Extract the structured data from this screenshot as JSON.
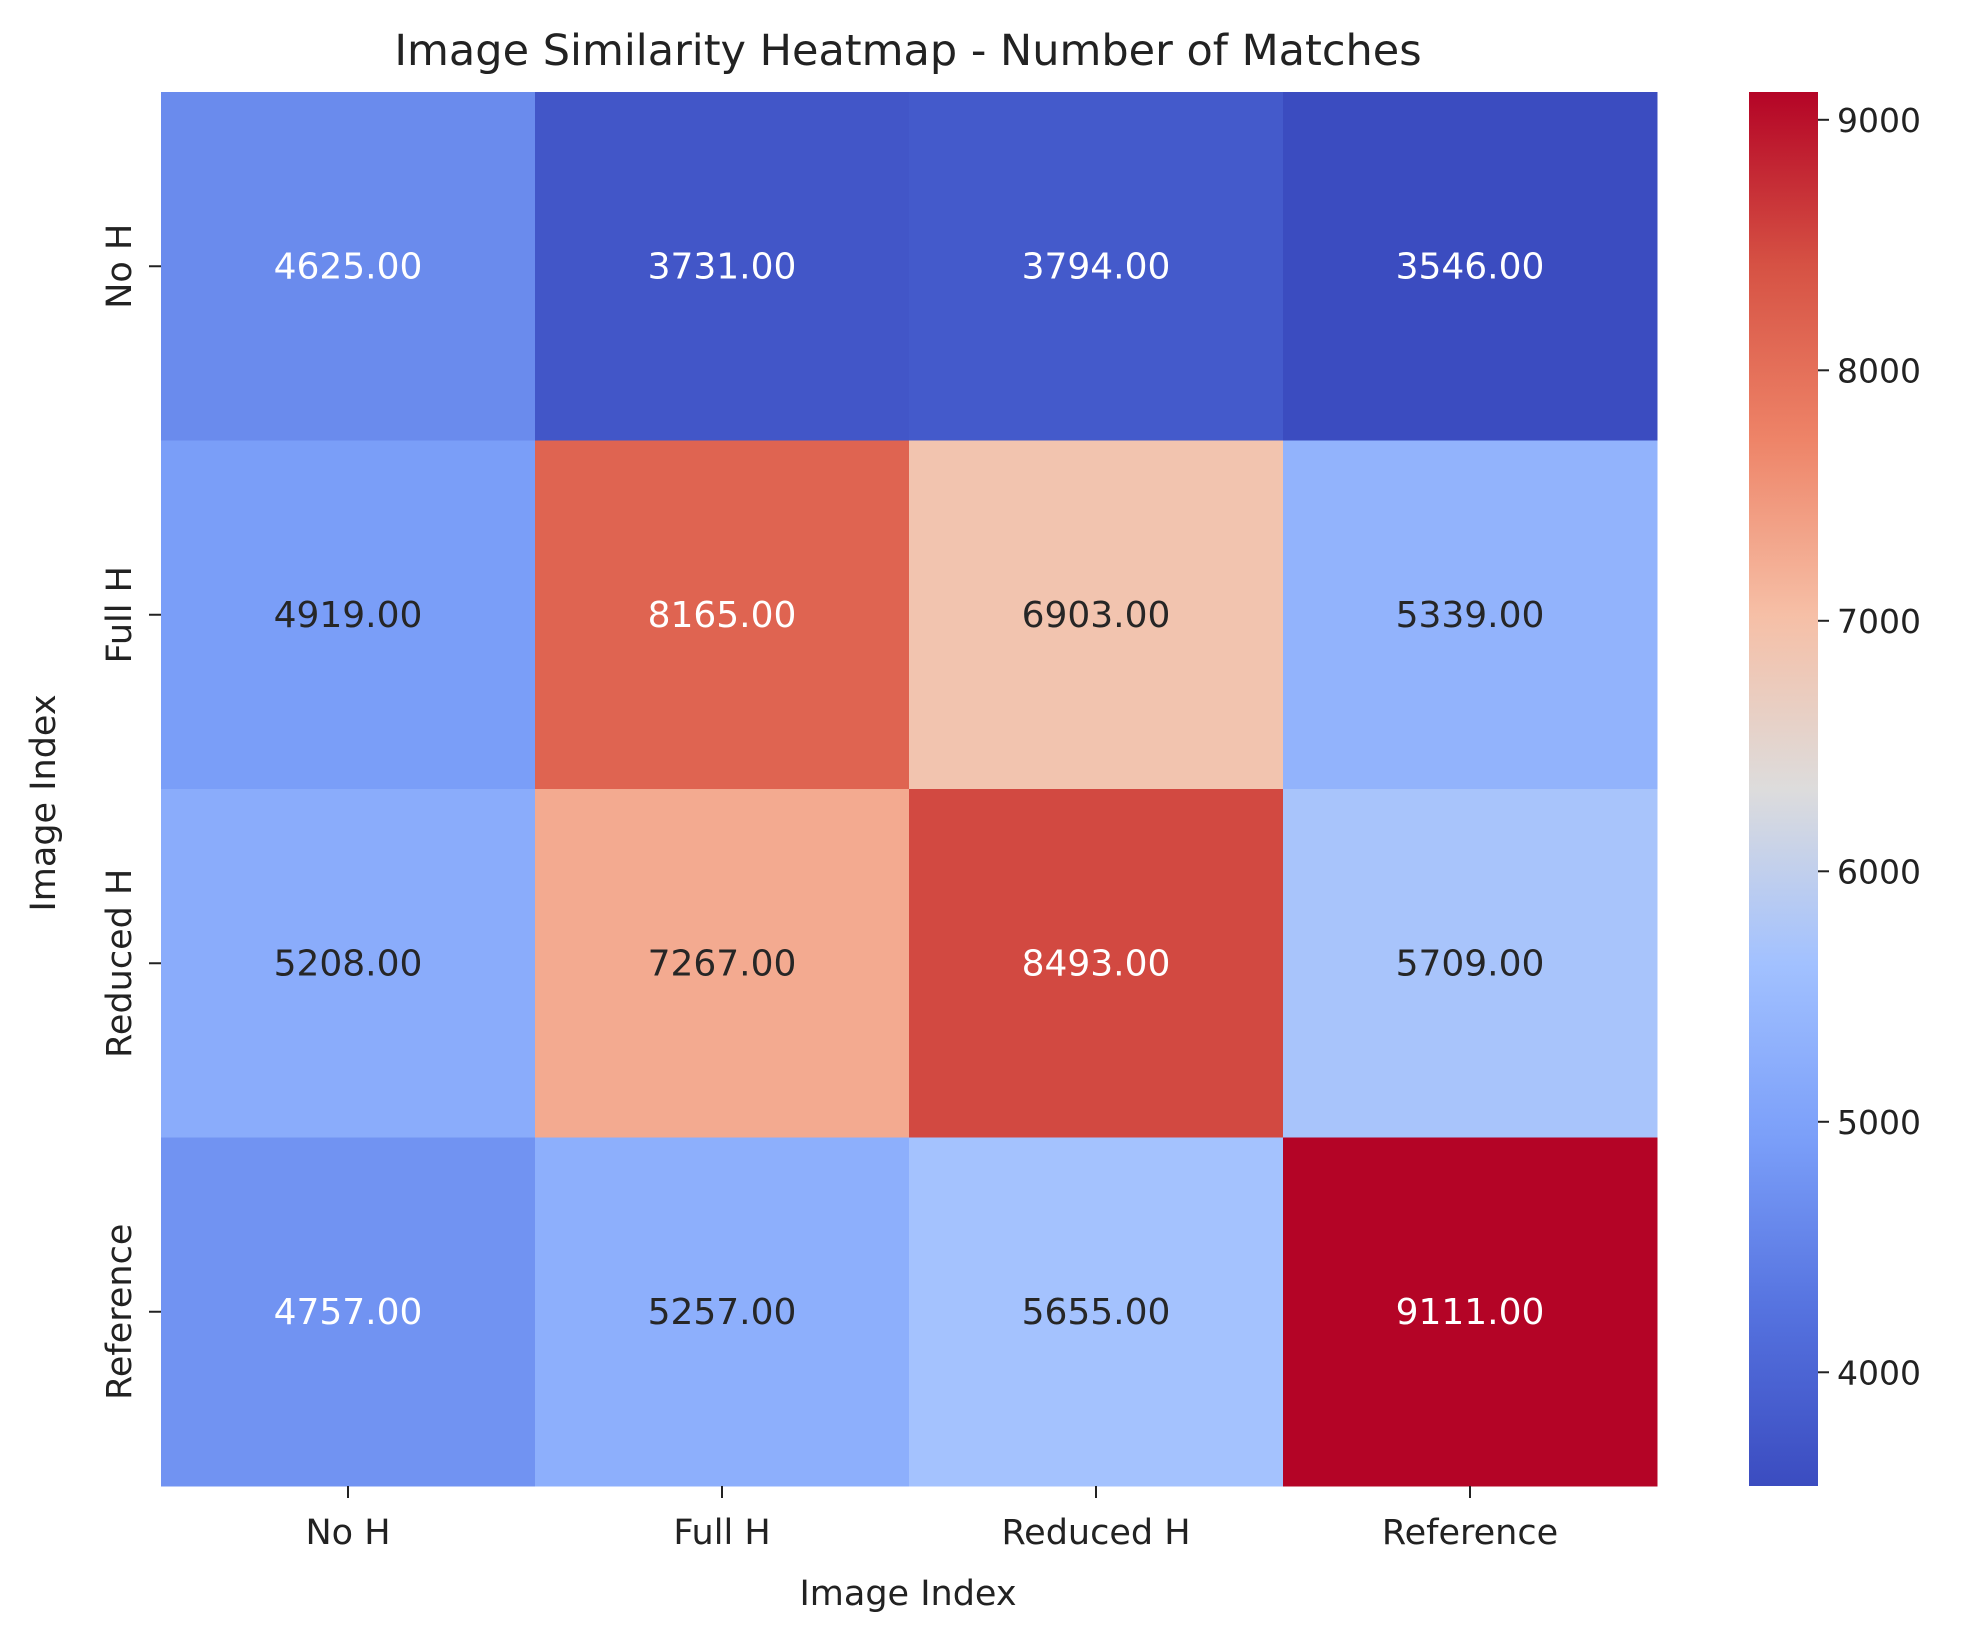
{
  "chart_data": {
    "type": "heatmap",
    "title": "Image Similarity Heatmap - Number of Matches",
    "xlabel": "Image Index",
    "ylabel": "Image Index",
    "x_categories": [
      "No H",
      "Full H",
      "Reduced H",
      "Reference"
    ],
    "y_categories": [
      "No H",
      "Full H",
      "Reduced H",
      "Reference"
    ],
    "values": [
      [
        4625,
        3731,
        3794,
        3546
      ],
      [
        4919,
        8165,
        6903,
        5339
      ],
      [
        5208,
        7267,
        8493,
        5709
      ],
      [
        4757,
        5257,
        5655,
        9111
      ]
    ],
    "value_labels": [
      [
        "4625.00",
        "3731.00",
        "3794.00",
        "3546.00"
      ],
      [
        "4919.00",
        "8165.00",
        "6903.00",
        "5339.00"
      ],
      [
        "5208.00",
        "7267.00",
        "8493.00",
        "5709.00"
      ],
      [
        "4757.00",
        "5257.00",
        "5655.00",
        "9111.00"
      ]
    ],
    "colormap": "coolwarm",
    "colorbar": {
      "range": [
        3546,
        9111
      ],
      "ticks": [
        4000,
        5000,
        6000,
        7000,
        8000,
        9000
      ],
      "tick_labels": [
        "4000",
        "5000",
        "6000",
        "7000",
        "8000",
        "9000"
      ]
    },
    "colors": {
      "cold": "#3b4cc0",
      "neutral": "#dddddd",
      "hot": "#b40426"
    }
  }
}
